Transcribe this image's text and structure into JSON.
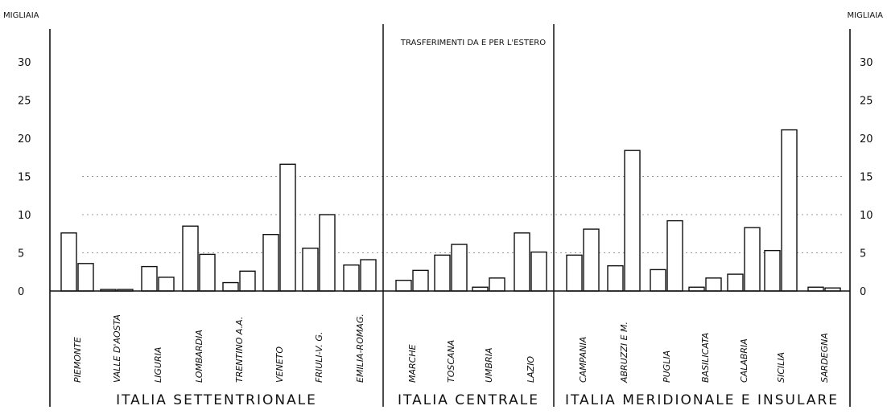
{
  "chart_data": {
    "type": "bar",
    "title": "TRASFERIMENTI DA E PER L'ESTERO",
    "unit_left": "MIGLIAIA",
    "unit_right": "MIGLIAIA",
    "ylim": [
      0,
      32
    ],
    "yticks": [
      "0",
      "5",
      "10",
      "15",
      "20",
      "25",
      "30"
    ],
    "grid": "dotted at 5, 10, 15",
    "categories": [
      "PIEMONTE",
      "VALLE D'AOSTA",
      "LIGURIA",
      "LOMBARDIA",
      "TRENTINO A.A.",
      "VENETO",
      "FRIULI-V. G.",
      "EMILIA-ROMAG.",
      "MARCHE",
      "TOSCANA",
      "UMBRIA",
      "LAZIO",
      "CAMPANIA",
      "ABRUZZI E M.",
      "PUGLIA",
      "BASILICATA",
      "CALABRIA",
      "SICILIA",
      "SARDEGNA"
    ],
    "series": [
      {
        "values": [
          7.6,
          0.2,
          3.2,
          8.5,
          1.1,
          7.4,
          5.6,
          3.4,
          1.4,
          4.7,
          0.5,
          7.6,
          4.7,
          3.3,
          2.8,
          0.5,
          2.2,
          5.3,
          0.5
        ]
      },
      {
        "values": [
          3.6,
          0.2,
          1.8,
          4.8,
          2.6,
          16.6,
          10.0,
          4.1,
          2.7,
          6.1,
          1.7,
          5.1,
          8.1,
          18.4,
          9.2,
          1.7,
          8.3,
          21.1,
          0.4
        ]
      }
    ],
    "groups": [
      {
        "label": "ITALIA SETTENTRIONALE",
        "count": 8
      },
      {
        "label": "ITALIA CENTRALE",
        "count": 4
      },
      {
        "label": "ITALIA MERIDIONALE E INSULARE",
        "count": 7
      }
    ]
  }
}
